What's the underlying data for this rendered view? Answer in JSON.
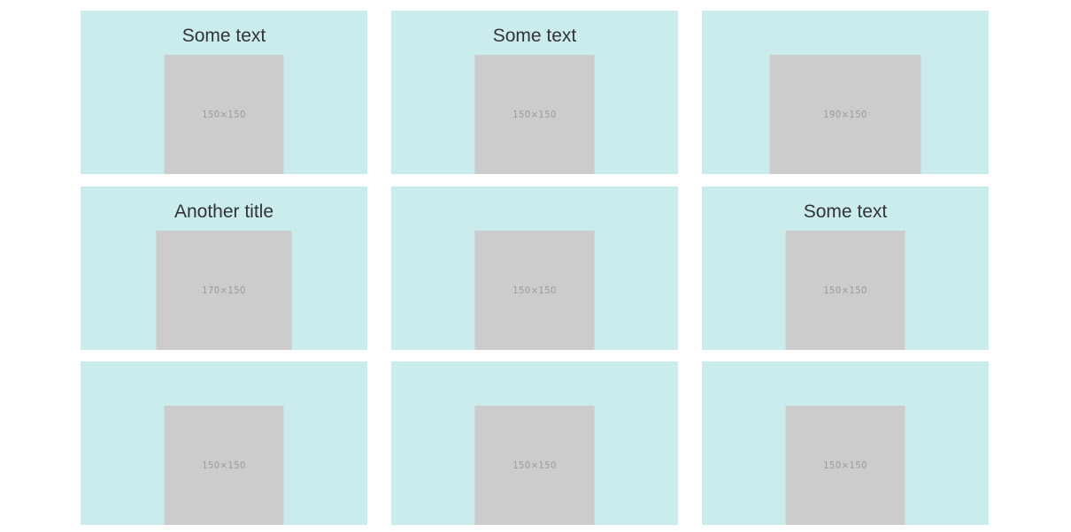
{
  "cells": [
    {
      "title": "Some text",
      "image_label": "150×150",
      "w": 135,
      "h": 135
    },
    {
      "title": "Some text",
      "image_label": "150×150",
      "w": 135,
      "h": 135
    },
    {
      "title": "",
      "image_label": "190×150",
      "w": 171,
      "h": 135
    },
    {
      "title": "Another title",
      "image_label": "170×150",
      "w": 153,
      "h": 135
    },
    {
      "title": "",
      "image_label": "150×150",
      "w": 135,
      "h": 135
    },
    {
      "title": "Some text",
      "image_label": "150×150",
      "w": 135,
      "h": 135
    },
    {
      "title": "",
      "image_label": "150×150",
      "w": 135,
      "h": 135
    },
    {
      "title": "",
      "image_label": "150×150",
      "w": 135,
      "h": 135
    },
    {
      "title": "",
      "image_label": "150×150",
      "w": 135,
      "h": 135
    }
  ],
  "colors": {
    "cell_bg": "#cbeced",
    "placeholder_bg": "#cccccc",
    "text": "#333333"
  }
}
